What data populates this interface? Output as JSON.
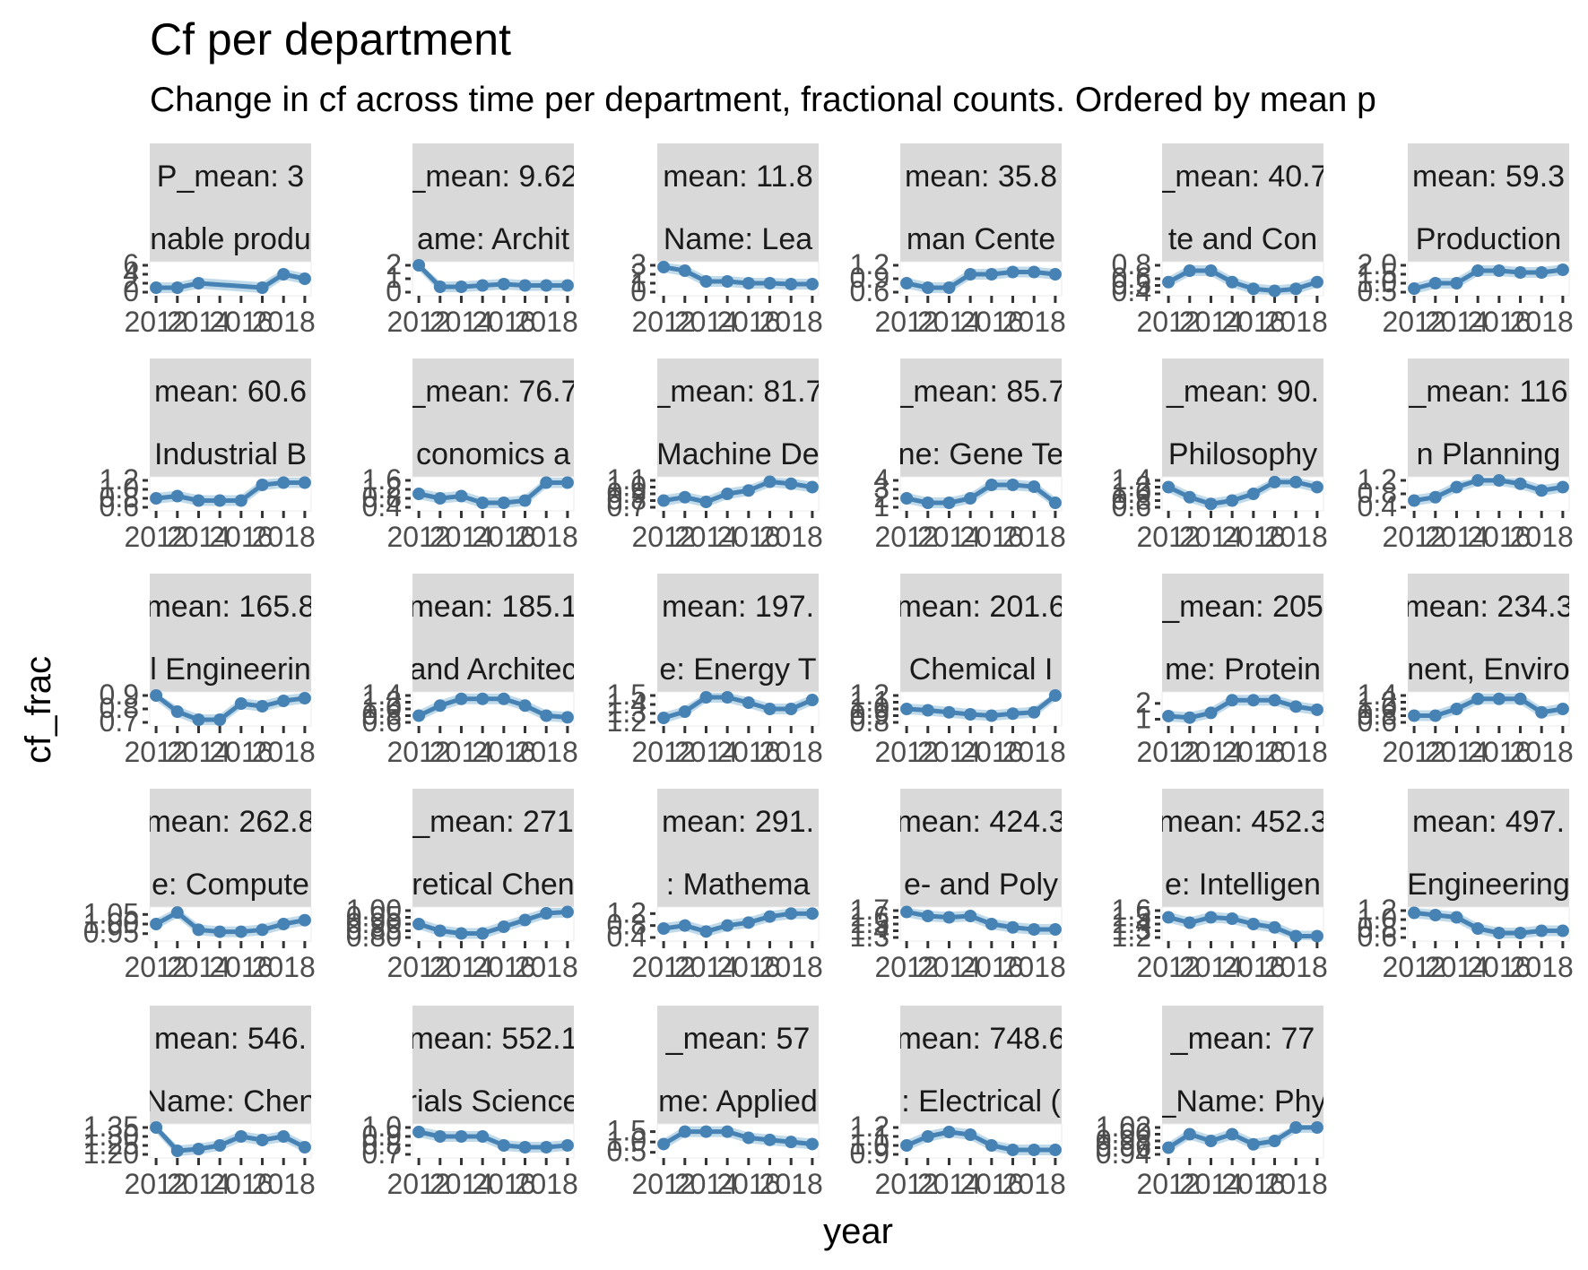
{
  "chart_data": {
    "type": "line",
    "title": "Cf per department",
    "subtitle": "Change in cf across time per department, fractional counts. Ordered by mean p",
    "xlabel": "year",
    "ylabel": "cf_frac",
    "x": [
      2012,
      2013,
      2014,
      2015,
      2016,
      2017,
      2018,
      2019
    ],
    "x_tick_labels": [
      "2012",
      "2014",
      "2016",
      "2018"
    ],
    "colors": {
      "line": "#4682b4",
      "ribbon": "#a6cbe0",
      "strip": "#d9d9d9",
      "smooth_band": "#d0d0d0"
    },
    "facets": [
      {
        "mean_label": "P_mean: 3",
        "name_label": "nable produ",
        "yticks": [
          "6",
          "4",
          "2",
          "0"
        ],
        "ylim": [
          0,
          6
        ],
        "values": [
          1,
          1,
          2,
          null,
          null,
          1,
          4,
          3
        ]
      },
      {
        "mean_label": "_mean: 9.62",
        "name_label": "ame: Archit",
        "yticks": [
          "2",
          "1",
          "0"
        ],
        "ylim": [
          0,
          2
        ],
        "values": [
          2.0,
          0.4,
          0.4,
          0.5,
          0.6,
          0.5,
          0.5,
          0.5
        ]
      },
      {
        "mean_label": "mean: 11.8",
        "name_label": "Name: Lea",
        "yticks": [
          "3",
          "2",
          "1",
          "0"
        ],
        "ylim": [
          0,
          3
        ],
        "values": [
          2.8,
          2.4,
          1.2,
          1.2,
          1.0,
          1.0,
          0.9,
          0.9
        ]
      },
      {
        "mean_label": "mean: 35.8",
        "name_label": "man Cente",
        "yticks": [
          "1.2",
          "0.9",
          "0.6"
        ],
        "ylim": [
          0.6,
          1.2
        ],
        "values": [
          0.8,
          0.7,
          0.7,
          1.0,
          1.0,
          1.05,
          1.05,
          1.0
        ]
      },
      {
        "mean_label": "_mean: 40.7",
        "name_label": "te and Con",
        "yticks": [
          "0.8",
          "0.6",
          "0.5",
          "0.4"
        ],
        "ylim": [
          0.4,
          0.8
        ],
        "values": [
          0.55,
          0.72,
          0.72,
          0.55,
          0.45,
          0.42,
          0.45,
          0.55
        ]
      },
      {
        "mean_label": "mean: 59.3",
        "name_label": "Production",
        "yticks": [
          "2.0",
          "1.5",
          "1.0",
          "0.5"
        ],
        "ylim": [
          0.5,
          2.0
        ],
        "values": [
          0.7,
          1.0,
          1.0,
          1.7,
          1.7,
          1.6,
          1.6,
          1.75
        ]
      },
      {
        "mean_label": "mean: 60.6",
        "name_label": "Industrial B",
        "yticks": [
          "1.2",
          "1.0",
          "0.8",
          "0.6"
        ],
        "ylim": [
          0.6,
          1.2
        ],
        "values": [
          0.8,
          0.85,
          0.75,
          0.75,
          0.75,
          1.1,
          1.15,
          1.15
        ]
      },
      {
        "mean_label": "_mean: 76.7",
        "name_label": "conomics a",
        "yticks": [
          "1.6",
          "1.2",
          "0.8",
          "0.4"
        ],
        "ylim": [
          0.4,
          1.6
        ],
        "values": [
          1.0,
          0.8,
          0.9,
          0.6,
          0.6,
          0.7,
          1.5,
          1.5
        ]
      },
      {
        "mean_label": "_mean: 81.7",
        "name_label": "Machine De",
        "yticks": [
          "1.1",
          "1.0",
          "0.9",
          "0.8",
          "0.7"
        ],
        "ylim": [
          0.7,
          1.1
        ],
        "values": [
          0.8,
          0.85,
          0.78,
          0.9,
          0.95,
          1.08,
          1.05,
          1.0
        ]
      },
      {
        "mean_label": "_mean: 85.7",
        "name_label": "ne: Gene Te",
        "yticks": [
          "4",
          "3",
          "2",
          "1"
        ],
        "ylim": [
          1,
          4
        ],
        "values": [
          2.0,
          1.5,
          1.5,
          2.0,
          3.5,
          3.5,
          3.3,
          1.5
        ]
      },
      {
        "mean_label": "_mean: 90.",
        "name_label": "Philosophy",
        "yticks": [
          "1.4",
          "1.2",
          "1.0",
          "0.8",
          "0.6"
        ],
        "ylim": [
          0.6,
          1.4
        ],
        "values": [
          1.2,
          0.9,
          0.7,
          0.8,
          1.0,
          1.35,
          1.35,
          1.2
        ]
      },
      {
        "mean_label": "_mean: 116",
        "name_label": "n Planning",
        "yticks": [
          "1.2",
          "0.8",
          "0.4"
        ],
        "ylim": [
          0.4,
          1.2
        ],
        "values": [
          0.6,
          0.7,
          1.0,
          1.2,
          1.2,
          1.1,
          0.9,
          1.0
        ]
      },
      {
        "mean_label": "mean: 165.8",
        "name_label": "l Engineerin",
        "yticks": [
          "0.9",
          "0.8",
          "0.7"
        ],
        "ylim": [
          0.7,
          0.9
        ],
        "values": [
          0.9,
          0.78,
          0.72,
          0.72,
          0.84,
          0.82,
          0.86,
          0.88
        ]
      },
      {
        "mean_label": "mean: 185.1",
        "name_label": "and Architec",
        "yticks": [
          "1.4",
          "1.2",
          "1.0",
          "0.8",
          "0.6"
        ],
        "ylim": [
          0.6,
          1.4
        ],
        "values": [
          0.8,
          1.1,
          1.3,
          1.3,
          1.3,
          1.1,
          0.8,
          0.75
        ]
      },
      {
        "mean_label": "mean: 197.",
        "name_label": "e: Energy T",
        "yticks": [
          "1.5",
          "1.4",
          "1.3",
          "1.2"
        ],
        "ylim": [
          1.2,
          1.5
        ],
        "values": [
          1.25,
          1.32,
          1.48,
          1.48,
          1.42,
          1.35,
          1.35,
          1.45
        ]
      },
      {
        "mean_label": "mean: 201.6",
        "name_label": "Chemical I",
        "yticks": [
          "1.2",
          "1.1",
          "1.0",
          "0.9",
          "0.8"
        ],
        "ylim": [
          0.8,
          1.2
        ],
        "values": [
          1.0,
          0.98,
          0.95,
          0.92,
          0.9,
          0.93,
          0.95,
          1.2
        ]
      },
      {
        "mean_label": "_mean: 205",
        "name_label": "me: Protein",
        "yticks": [
          "2",
          "1"
        ],
        "ylim": [
          0.8,
          2.5
        ],
        "values": [
          1.2,
          1.1,
          1.4,
          2.2,
          2.2,
          2.2,
          1.8,
          1.6
        ]
      },
      {
        "mean_label": "mean: 234.3",
        "name_label": "nent, Enviro",
        "yticks": [
          "1.4",
          "1.2",
          "1.0",
          "0.8",
          "0.6"
        ],
        "ylim": [
          0.6,
          1.4
        ],
        "values": [
          0.8,
          0.8,
          1.0,
          1.3,
          1.3,
          1.3,
          0.9,
          1.0
        ]
      },
      {
        "mean_label": "mean: 262.8",
        "name_label": "e: Compute",
        "yticks": [
          "1.05",
          "1.00",
          "0.95"
        ],
        "ylim": [
          0.93,
          1.07
        ],
        "values": [
          1.0,
          1.06,
          0.97,
          0.96,
          0.96,
          0.97,
          1.0,
          1.02
        ]
      },
      {
        "mean_label": "_mean: 271",
        "name_label": "retical Chen",
        "yticks": [
          "1.00",
          "0.95",
          "0.90",
          "0.85",
          "0.80"
        ],
        "ylim": [
          0.8,
          1.0
        ],
        "values": [
          0.9,
          0.85,
          0.83,
          0.83,
          0.88,
          0.93,
          0.98,
          0.99
        ]
      },
      {
        "mean_label": "mean: 291.",
        "name_label": ": Mathema",
        "yticks": [
          "1.2",
          "0.8",
          "0.4"
        ],
        "ylim": [
          0.4,
          1.3
        ],
        "values": [
          0.7,
          0.8,
          0.6,
          0.8,
          0.9,
          1.1,
          1.2,
          1.2
        ]
      },
      {
        "mean_label": "mean: 424.3",
        "name_label": "e- and Poly",
        "yticks": [
          "1.7",
          "1.6",
          "1.5",
          "1.4",
          "1.3"
        ],
        "ylim": [
          1.3,
          1.7
        ],
        "values": [
          1.68,
          1.62,
          1.6,
          1.62,
          1.5,
          1.45,
          1.42,
          1.42
        ]
      },
      {
        "mean_label": "mean: 452.3",
        "name_label": "e: Intelligen",
        "yticks": [
          "1.6",
          "1.5",
          "1.4",
          "1.3",
          "1.2"
        ],
        "ylim": [
          1.2,
          1.6
        ],
        "values": [
          1.5,
          1.42,
          1.5,
          1.48,
          1.4,
          1.35,
          1.22,
          1.22
        ]
      },
      {
        "mean_label": "mean: 497.",
        "name_label": "Engineering",
        "yticks": [
          "1.2",
          "1.0",
          "0.8",
          "0.6"
        ],
        "ylim": [
          0.6,
          1.2
        ],
        "values": [
          1.15,
          1.1,
          1.05,
          0.8,
          0.7,
          0.7,
          0.75,
          0.75
        ]
      },
      {
        "mean_label": "mean: 546.",
        "name_label": "Name: Chen",
        "yticks": [
          "1.35",
          "1.30",
          "1.25",
          "1.20"
        ],
        "ylim": [
          1.2,
          1.35
        ],
        "values": [
          1.35,
          1.22,
          1.23,
          1.25,
          1.3,
          1.28,
          1.3,
          1.24
        ]
      },
      {
        "mean_label": "mean: 552.1",
        "name_label": "rials Science",
        "yticks": [
          "1.0",
          "0.9",
          "0.8",
          "0.7"
        ],
        "ylim": [
          0.7,
          1.0
        ],
        "values": [
          0.95,
          0.9,
          0.9,
          0.9,
          0.8,
          0.78,
          0.78,
          0.8
        ]
      },
      {
        "mean_label": "_mean: 57",
        "name_label": "me: Applied",
        "yticks": [
          "1.5",
          "1.0",
          "0.5"
        ],
        "ylim": [
          0.4,
          1.7
        ],
        "values": [
          0.9,
          1.5,
          1.5,
          1.5,
          1.2,
          1.1,
          1.0,
          0.9
        ]
      },
      {
        "mean_label": "mean: 748.6",
        "name_label": ": Electrical (",
        "yticks": [
          "1.2",
          "1.1",
          "1.0",
          "0.9"
        ],
        "ylim": [
          0.9,
          1.2
        ],
        "values": [
          1.0,
          1.1,
          1.15,
          1.12,
          1.0,
          0.95,
          0.95,
          0.95
        ]
      },
      {
        "mean_label": "_mean: 77",
        "name_label": "_Name: Phy",
        "yticks": [
          "1.02",
          "1.00",
          "0.98",
          "0.96",
          "0.94"
        ],
        "ylim": [
          0.94,
          1.02
        ],
        "values": [
          0.96,
          1.0,
          0.98,
          1.0,
          0.97,
          0.98,
          1.02,
          1.02
        ]
      }
    ]
  }
}
